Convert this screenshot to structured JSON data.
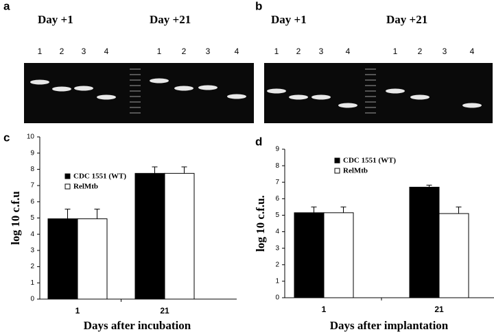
{
  "gels": [
    {
      "label": "a",
      "days": [
        "Day +1",
        "Day +21"
      ],
      "lanes": [
        "1",
        "2",
        "3",
        "4",
        "1",
        "2",
        "3",
        "4"
      ]
    },
    {
      "label": "b",
      "days": [
        "Day +1",
        "Day +21"
      ],
      "lanes": [
        "1",
        "2",
        "3",
        "4",
        "1",
        "2",
        "3",
        "4"
      ]
    }
  ],
  "chart_data": [
    {
      "type": "bar",
      "panel_label": "c",
      "xlabel": "Days after incubation",
      "ylabel": "log 10 c.f.u",
      "categories": [
        "1",
        "21"
      ],
      "series": [
        {
          "name": "CDC 1551 (WT)",
          "color": "#000000",
          "values": [
            4.95,
            7.75
          ],
          "errors": [
            0.6,
            0.4
          ]
        },
        {
          "name": "RelMtb",
          "color": "#ffffff",
          "values": [
            4.95,
            7.75
          ],
          "errors": [
            0.6,
            0.4
          ]
        }
      ],
      "ylim": [
        0,
        10
      ],
      "yticks": [
        0,
        1,
        2,
        3,
        4,
        5,
        6,
        7,
        8,
        9,
        10
      ]
    },
    {
      "type": "bar",
      "panel_label": "d",
      "xlabel": "Days after implantation",
      "ylabel": "log 10 c.f.u.",
      "categories": [
        "1",
        "21"
      ],
      "series": [
        {
          "name": "CDC 1551 (WT)",
          "color": "#000000",
          "values": [
            5.15,
            6.7
          ],
          "errors": [
            0.35,
            0.12
          ]
        },
        {
          "name": "RelMtb",
          "color": "#ffffff",
          "values": [
            5.15,
            5.1
          ],
          "errors": [
            0.35,
            0.4
          ]
        }
      ],
      "ylim": [
        0,
        9
      ],
      "yticks": [
        0,
        1,
        2,
        3,
        4,
        5,
        6,
        7,
        8,
        9
      ]
    }
  ]
}
